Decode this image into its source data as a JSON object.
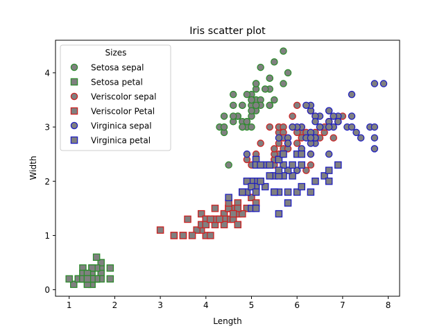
{
  "chart_data": {
    "type": "scatter",
    "title": "Iris scatter plot",
    "xlabel": "Length",
    "ylabel": "Width",
    "xlim": [
      0.7,
      8.25
    ],
    "ylim": [
      -0.12,
      4.6
    ],
    "x_ticks": [
      1,
      2,
      3,
      4,
      5,
      6,
      7,
      8
    ],
    "y_ticks": [
      0,
      1,
      2,
      3,
      4
    ],
    "grid": false,
    "legend": {
      "title": "Sizes",
      "placement": "top-left"
    },
    "series": [
      {
        "name": "Setosa sepal",
        "marker": "circle",
        "face_color": "#808080",
        "edge_color": "#2e8b2e",
        "points": [
          [
            5.1,
            3.5
          ],
          [
            4.9,
            3.0
          ],
          [
            4.7,
            3.2
          ],
          [
            4.6,
            3.1
          ],
          [
            5.0,
            3.6
          ],
          [
            5.4,
            3.9
          ],
          [
            4.6,
            3.4
          ],
          [
            5.0,
            3.4
          ],
          [
            4.4,
            2.9
          ],
          [
            4.9,
            3.1
          ],
          [
            5.4,
            3.7
          ],
          [
            4.8,
            3.4
          ],
          [
            4.8,
            3.0
          ],
          [
            4.3,
            3.0
          ],
          [
            5.8,
            4.0
          ],
          [
            5.7,
            4.4
          ],
          [
            5.4,
            3.9
          ],
          [
            5.1,
            3.5
          ],
          [
            5.7,
            3.8
          ],
          [
            5.1,
            3.8
          ],
          [
            5.4,
            3.4
          ],
          [
            5.1,
            3.7
          ],
          [
            4.6,
            3.6
          ],
          [
            5.1,
            3.3
          ],
          [
            4.8,
            3.4
          ],
          [
            5.0,
            3.0
          ],
          [
            5.0,
            3.4
          ],
          [
            5.2,
            3.5
          ],
          [
            5.2,
            3.4
          ],
          [
            4.7,
            3.2
          ],
          [
            4.8,
            3.1
          ],
          [
            5.4,
            3.4
          ],
          [
            5.2,
            4.1
          ],
          [
            5.5,
            4.2
          ],
          [
            4.9,
            3.1
          ],
          [
            5.0,
            3.2
          ],
          [
            5.5,
            3.5
          ],
          [
            4.9,
            3.6
          ],
          [
            4.4,
            3.0
          ],
          [
            5.1,
            3.4
          ],
          [
            5.0,
            3.5
          ],
          [
            4.5,
            2.3
          ],
          [
            4.4,
            3.2
          ],
          [
            5.0,
            3.5
          ],
          [
            5.1,
            3.8
          ],
          [
            4.8,
            3.0
          ],
          [
            5.1,
            3.8
          ],
          [
            4.6,
            3.2
          ],
          [
            5.3,
            3.7
          ],
          [
            5.0,
            3.3
          ]
        ]
      },
      {
        "name": "Setosa petal",
        "marker": "square",
        "face_color": "#808080",
        "edge_color": "#2e8b2e",
        "points": [
          [
            1.4,
            0.2
          ],
          [
            1.4,
            0.2
          ],
          [
            1.3,
            0.2
          ],
          [
            1.5,
            0.2
          ],
          [
            1.4,
            0.2
          ],
          [
            1.7,
            0.4
          ],
          [
            1.4,
            0.3
          ],
          [
            1.5,
            0.2
          ],
          [
            1.4,
            0.2
          ],
          [
            1.5,
            0.1
          ],
          [
            1.5,
            0.2
          ],
          [
            1.6,
            0.2
          ],
          [
            1.4,
            0.1
          ],
          [
            1.1,
            0.1
          ],
          [
            1.2,
            0.2
          ],
          [
            1.5,
            0.4
          ],
          [
            1.3,
            0.4
          ],
          [
            1.4,
            0.3
          ],
          [
            1.7,
            0.3
          ],
          [
            1.5,
            0.3
          ],
          [
            1.7,
            0.2
          ],
          [
            1.5,
            0.4
          ],
          [
            1.0,
            0.2
          ],
          [
            1.7,
            0.5
          ],
          [
            1.9,
            0.2
          ],
          [
            1.6,
            0.2
          ],
          [
            1.6,
            0.4
          ],
          [
            1.5,
            0.2
          ],
          [
            1.4,
            0.2
          ],
          [
            1.6,
            0.2
          ],
          [
            1.6,
            0.2
          ],
          [
            1.5,
            0.4
          ],
          [
            1.5,
            0.1
          ],
          [
            1.4,
            0.2
          ],
          [
            1.5,
            0.2
          ],
          [
            1.2,
            0.2
          ],
          [
            1.3,
            0.2
          ],
          [
            1.4,
            0.1
          ],
          [
            1.3,
            0.2
          ],
          [
            1.5,
            0.2
          ],
          [
            1.3,
            0.3
          ],
          [
            1.3,
            0.3
          ],
          [
            1.3,
            0.2
          ],
          [
            1.6,
            0.6
          ],
          [
            1.9,
            0.4
          ],
          [
            1.4,
            0.3
          ],
          [
            1.6,
            0.2
          ],
          [
            1.4,
            0.2
          ],
          [
            1.5,
            0.2
          ],
          [
            1.4,
            0.2
          ]
        ]
      },
      {
        "name": "Veriscolor sepal",
        "marker": "circle",
        "face_color": "#808080",
        "edge_color": "#cc2222",
        "points": [
          [
            7.0,
            3.2
          ],
          [
            6.4,
            3.2
          ],
          [
            6.9,
            3.1
          ],
          [
            5.5,
            2.3
          ],
          [
            6.5,
            2.8
          ],
          [
            5.7,
            2.8
          ],
          [
            6.3,
            3.3
          ],
          [
            4.9,
            2.4
          ],
          [
            6.6,
            2.9
          ],
          [
            5.2,
            2.7
          ],
          [
            5.0,
            2.0
          ],
          [
            5.9,
            3.0
          ],
          [
            6.0,
            2.2
          ],
          [
            6.1,
            2.9
          ],
          [
            5.6,
            2.9
          ],
          [
            6.7,
            3.1
          ],
          [
            5.6,
            3.0
          ],
          [
            5.8,
            2.7
          ],
          [
            6.2,
            2.2
          ],
          [
            5.6,
            2.5
          ],
          [
            5.9,
            3.2
          ],
          [
            6.1,
            2.8
          ],
          [
            6.3,
            2.5
          ],
          [
            6.1,
            2.8
          ],
          [
            6.4,
            2.9
          ],
          [
            6.6,
            3.0
          ],
          [
            6.8,
            2.8
          ],
          [
            6.7,
            3.0
          ],
          [
            6.0,
            2.9
          ],
          [
            5.7,
            2.6
          ],
          [
            5.5,
            2.4
          ],
          [
            5.5,
            2.4
          ],
          [
            5.8,
            2.7
          ],
          [
            6.0,
            2.7
          ],
          [
            5.4,
            3.0
          ],
          [
            6.0,
            3.4
          ],
          [
            6.7,
            3.1
          ],
          [
            6.3,
            2.3
          ],
          [
            5.6,
            3.0
          ],
          [
            5.5,
            2.5
          ],
          [
            5.5,
            2.6
          ],
          [
            6.1,
            3.0
          ],
          [
            5.8,
            2.6
          ],
          [
            5.0,
            2.3
          ],
          [
            5.6,
            2.7
          ],
          [
            5.7,
            3.0
          ],
          [
            5.7,
            2.9
          ],
          [
            6.2,
            2.9
          ],
          [
            5.1,
            2.5
          ],
          [
            5.7,
            2.8
          ]
        ]
      },
      {
        "name": "Veriscolor Petal",
        "marker": "square",
        "face_color": "#808080",
        "edge_color": "#cc2222",
        "points": [
          [
            4.7,
            1.4
          ],
          [
            4.5,
            1.5
          ],
          [
            4.9,
            1.5
          ],
          [
            4.0,
            1.3
          ],
          [
            4.6,
            1.5
          ],
          [
            4.5,
            1.3
          ],
          [
            4.7,
            1.6
          ],
          [
            3.3,
            1.0
          ],
          [
            4.6,
            1.3
          ],
          [
            3.9,
            1.4
          ],
          [
            3.5,
            1.0
          ],
          [
            4.2,
            1.5
          ],
          [
            4.0,
            1.0
          ],
          [
            4.7,
            1.4
          ],
          [
            3.6,
            1.3
          ],
          [
            4.4,
            1.4
          ],
          [
            4.5,
            1.5
          ],
          [
            4.1,
            1.0
          ],
          [
            4.5,
            1.5
          ],
          [
            3.9,
            1.1
          ],
          [
            4.8,
            1.8
          ],
          [
            4.0,
            1.3
          ],
          [
            4.9,
            1.5
          ],
          [
            4.7,
            1.2
          ],
          [
            4.3,
            1.3
          ],
          [
            4.4,
            1.4
          ],
          [
            4.8,
            1.4
          ],
          [
            5.0,
            1.7
          ],
          [
            4.5,
            1.5
          ],
          [
            3.5,
            1.0
          ],
          [
            3.8,
            1.1
          ],
          [
            3.7,
            1.0
          ],
          [
            3.9,
            1.2
          ],
          [
            5.1,
            1.6
          ],
          [
            4.5,
            1.5
          ],
          [
            4.5,
            1.6
          ],
          [
            4.7,
            1.5
          ],
          [
            4.4,
            1.3
          ],
          [
            4.1,
            1.3
          ],
          [
            4.0,
            1.3
          ],
          [
            4.4,
            1.2
          ],
          [
            4.6,
            1.4
          ],
          [
            4.0,
            1.2
          ],
          [
            3.3,
            1.0
          ],
          [
            4.2,
            1.3
          ],
          [
            4.2,
            1.2
          ],
          [
            4.2,
            1.3
          ],
          [
            4.3,
            1.3
          ],
          [
            3.0,
            1.1
          ],
          [
            4.1,
            1.3
          ]
        ]
      },
      {
        "name": "Virginica sepal",
        "marker": "circle",
        "face_color": "#808080",
        "edge_color": "#1f1fbf",
        "points": [
          [
            6.3,
            3.3
          ],
          [
            5.8,
            2.7
          ],
          [
            7.1,
            3.0
          ],
          [
            6.3,
            2.9
          ],
          [
            6.5,
            3.0
          ],
          [
            7.6,
            3.0
          ],
          [
            4.9,
            2.5
          ],
          [
            7.3,
            2.9
          ],
          [
            6.7,
            2.5
          ],
          [
            7.2,
            3.6
          ],
          [
            6.5,
            3.2
          ],
          [
            6.4,
            2.7
          ],
          [
            6.8,
            3.0
          ],
          [
            5.7,
            2.5
          ],
          [
            5.8,
            2.8
          ],
          [
            6.4,
            3.2
          ],
          [
            6.5,
            3.0
          ],
          [
            7.7,
            3.8
          ],
          [
            7.7,
            2.6
          ],
          [
            6.0,
            2.2
          ],
          [
            6.9,
            3.2
          ],
          [
            5.6,
            2.8
          ],
          [
            7.7,
            2.8
          ],
          [
            6.3,
            2.7
          ],
          [
            6.7,
            3.3
          ],
          [
            7.2,
            3.2
          ],
          [
            6.2,
            2.8
          ],
          [
            6.1,
            3.0
          ],
          [
            6.4,
            2.8
          ],
          [
            7.2,
            3.0
          ],
          [
            7.4,
            2.8
          ],
          [
            7.9,
            3.8
          ],
          [
            6.4,
            2.8
          ],
          [
            6.3,
            2.8
          ],
          [
            6.1,
            2.6
          ],
          [
            7.7,
            3.0
          ],
          [
            6.3,
            3.4
          ],
          [
            6.4,
            3.1
          ],
          [
            6.0,
            3.0
          ],
          [
            6.9,
            3.1
          ],
          [
            6.7,
            3.1
          ],
          [
            6.9,
            3.1
          ],
          [
            5.8,
            2.7
          ],
          [
            6.8,
            3.2
          ],
          [
            6.7,
            3.3
          ],
          [
            6.7,
            3.0
          ],
          [
            6.3,
            2.5
          ],
          [
            6.5,
            3.0
          ],
          [
            6.2,
            3.4
          ],
          [
            5.9,
            3.0
          ]
        ]
      },
      {
        "name": "Virginica petal",
        "marker": "square",
        "face_color": "#808080",
        "edge_color": "#1f1fbf",
        "points": [
          [
            6.0,
            2.5
          ],
          [
            5.1,
            1.9
          ],
          [
            5.9,
            2.1
          ],
          [
            5.6,
            1.8
          ],
          [
            5.8,
            2.2
          ],
          [
            6.6,
            2.1
          ],
          [
            4.5,
            1.7
          ],
          [
            6.3,
            1.8
          ],
          [
            5.8,
            1.8
          ],
          [
            6.1,
            2.5
          ],
          [
            5.1,
            2.0
          ],
          [
            5.3,
            1.9
          ],
          [
            5.5,
            2.1
          ],
          [
            5.0,
            2.0
          ],
          [
            5.1,
            2.4
          ],
          [
            5.3,
            2.3
          ],
          [
            5.5,
            1.8
          ],
          [
            6.7,
            2.2
          ],
          [
            6.9,
            2.3
          ],
          [
            5.0,
            1.5
          ],
          [
            5.7,
            2.3
          ],
          [
            4.9,
            2.0
          ],
          [
            6.7,
            2.0
          ],
          [
            4.9,
            1.8
          ],
          [
            5.7,
            2.1
          ],
          [
            6.0,
            1.8
          ],
          [
            4.8,
            1.8
          ],
          [
            4.9,
            1.8
          ],
          [
            5.6,
            2.1
          ],
          [
            5.8,
            1.6
          ],
          [
            6.1,
            1.9
          ],
          [
            6.4,
            2.0
          ],
          [
            5.6,
            2.2
          ],
          [
            5.1,
            1.5
          ],
          [
            5.6,
            1.4
          ],
          [
            6.1,
            2.3
          ],
          [
            5.6,
            2.4
          ],
          [
            5.5,
            1.8
          ],
          [
            4.8,
            1.8
          ],
          [
            5.4,
            2.1
          ],
          [
            5.6,
            2.4
          ],
          [
            5.1,
            2.3
          ],
          [
            5.1,
            1.9
          ],
          [
            5.9,
            2.3
          ],
          [
            5.7,
            2.5
          ],
          [
            5.2,
            2.3
          ],
          [
            5.0,
            1.9
          ],
          [
            5.2,
            2.0
          ],
          [
            5.4,
            2.3
          ],
          [
            5.1,
            1.8
          ]
        ]
      }
    ]
  }
}
